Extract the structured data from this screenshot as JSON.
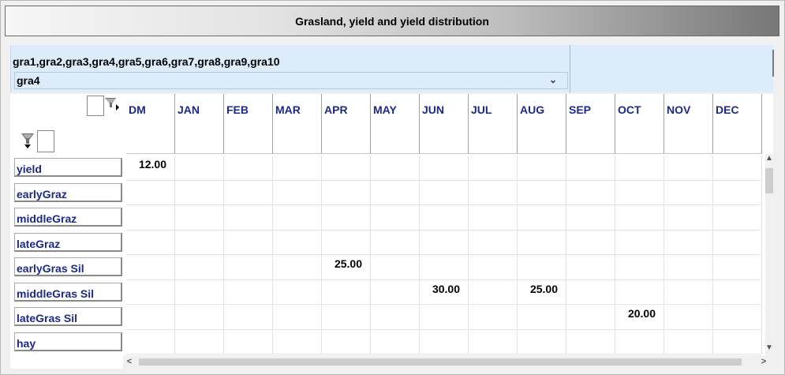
{
  "window": {
    "title": "Grasland, yield and yield distribution"
  },
  "selector": {
    "list_text": "gra1,gra2,gra3,gra4,gra5,gra6,gra7,gra8,gra9,gra10",
    "selected": "gra4",
    "dropdown_arrow": "⌄"
  },
  "grid": {
    "columns": [
      "DM",
      "JAN",
      "FEB",
      "MAR",
      "APR",
      "MAY",
      "JUN",
      "JUL",
      "AUG",
      "SEP",
      "OCT",
      "NOV",
      "DEC"
    ],
    "rows": [
      {
        "label": "yield",
        "cells": [
          "12.00",
          "",
          "",
          "",
          "",
          "",
          "",
          "",
          "",
          "",
          "",
          "",
          ""
        ]
      },
      {
        "label": "earlyGraz",
        "cells": [
          "",
          "",
          "",
          "",
          "",
          "",
          "",
          "",
          "",
          "",
          "",
          "",
          ""
        ]
      },
      {
        "label": "middleGraz",
        "cells": [
          "",
          "",
          "",
          "",
          "",
          "",
          "",
          "",
          "",
          "",
          "",
          "",
          ""
        ]
      },
      {
        "label": "lateGraz",
        "cells": [
          "",
          "",
          "",
          "",
          "",
          "",
          "",
          "",
          "",
          "",
          "",
          "",
          ""
        ]
      },
      {
        "label": "earlyGras Sil",
        "cells": [
          "",
          "",
          "",
          "",
          "25.00",
          "",
          "",
          "",
          "",
          "",
          "",
          "",
          ""
        ]
      },
      {
        "label": "middleGras Sil",
        "cells": [
          "",
          "",
          "",
          "",
          "",
          "",
          "30.00",
          "",
          "25.00",
          "",
          "",
          "",
          ""
        ]
      },
      {
        "label": "lateGras Sil",
        "cells": [
          "",
          "",
          "",
          "",
          "",
          "",
          "",
          "",
          "",
          "",
          "20.00",
          "",
          ""
        ]
      },
      {
        "label": "hay",
        "cells": [
          "",
          "",
          "",
          "",
          "",
          "",
          "",
          "",
          "",
          "",
          "",
          "",
          ""
        ]
      }
    ]
  },
  "icons": {
    "filter_columns": "funnel-filter-icon",
    "filter_rows": "funnel-filter-icon",
    "scroll_up": "▲",
    "scroll_down": "▼",
    "scroll_left": "<",
    "scroll_right": ">"
  },
  "colors": {
    "header_text": "#1b2a8a",
    "selector_bg": "#dcecfb"
  }
}
